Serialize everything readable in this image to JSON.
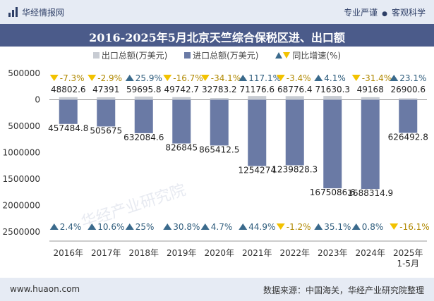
{
  "header": {
    "brand": "华经情报网",
    "tags": [
      "专业严谨",
      "客观科学"
    ]
  },
  "title": "2016-2025年5月北京天竺综合保税区进、出口额",
  "legend": {
    "export": "出口总额(万美元)",
    "import": "进口总额(万美元)",
    "yoy": "同比增速(%)"
  },
  "colors": {
    "export": "#c8ccd3",
    "import": "#6a7aa5",
    "up": "#3a6a8c",
    "down": "#f2c200",
    "growth_up_text": "#2e5c7c",
    "growth_down_text": "#b08800"
  },
  "footer": {
    "url": "www.huaon.com",
    "source": "数据来源：中国海关，华经产业研究院整理"
  },
  "watermark": "华经产业研究院",
  "chart_data": {
    "type": "bar",
    "categories": [
      "2016年",
      "2017年",
      "2018年",
      "2019年",
      "2020年",
      "2021年",
      "2022年",
      "2023年",
      "2024年",
      "2025年\n1-5月"
    ],
    "series": [
      {
        "name": "出口总额(万美元)",
        "values": [
          48802.6,
          47391,
          59695.8,
          49742.7,
          32783.2,
          71176.6,
          68776.4,
          71630.3,
          49168,
          26900.6
        ],
        "labels": [
          "48802.6",
          "47391",
          "59695.8",
          "49742.7",
          "32783.2",
          "71176.6",
          "68776.4",
          "71630.3",
          "49168",
          "26900.6"
        ]
      },
      {
        "name": "进口总额(万美元)",
        "values": [
          -457484.8,
          -505675,
          -632084.6,
          -826845,
          -865412.5,
          -1254274,
          -1239828.3,
          -1675086.6,
          -1688314.9,
          -626492.8
        ],
        "labels": [
          "457484.8",
          "505675",
          "632084.6",
          "826845",
          "865412.5",
          "1254274",
          "1239828.3",
          "1675086.6",
          "1688314.9",
          "626492.8"
        ]
      }
    ],
    "export_yoy": [
      "-7.3%",
      "-2.9%",
      "25.9%",
      "-16.7%",
      "-34.1%",
      "117.1%",
      "-3.4%",
      "4.1%",
      "-31.4%",
      "23.1%"
    ],
    "import_yoy": [
      "2.4%",
      "10.6%",
      "25%",
      "30.8%",
      "4.7%",
      "44.9%",
      "-1.2%",
      "35.1%",
      "0.8%",
      "-16.1%"
    ],
    "yticks": [
      500000,
      0,
      -500000,
      -1000000,
      -1500000,
      -2000000,
      -2500000
    ],
    "ytick_labels": [
      "500000",
      "0",
      "500000",
      "1000000",
      "1500000",
      "2000000",
      "2500000"
    ],
    "ylim": [
      -2500000,
      500000
    ],
    "grid": false
  }
}
